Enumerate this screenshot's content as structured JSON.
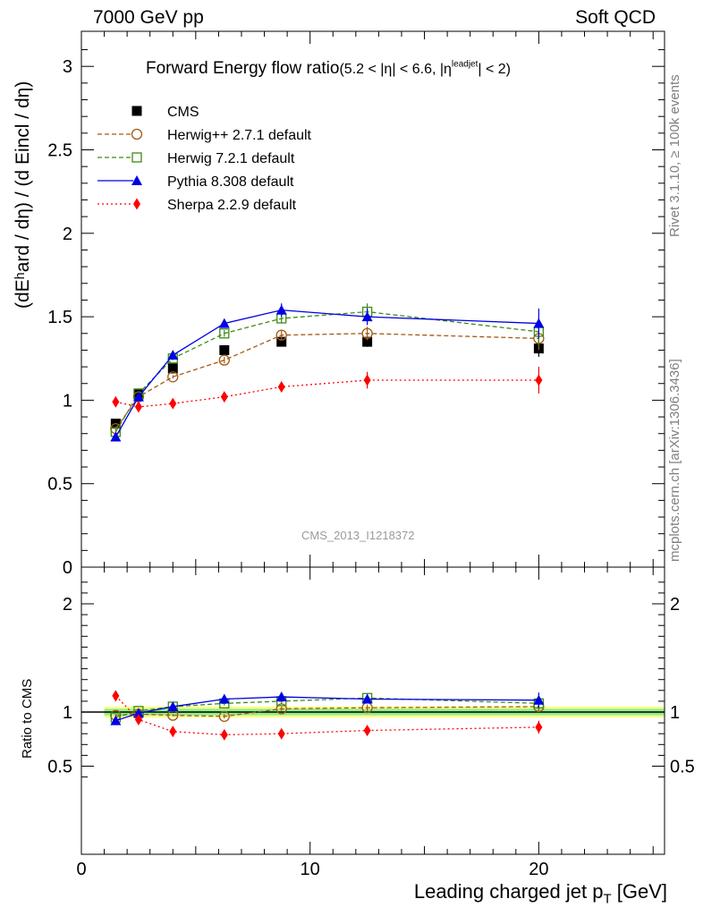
{
  "header": {
    "left": "7000 GeV pp",
    "right": "Soft QCD"
  },
  "side_labels": {
    "rivet": "Rivet 3.1.10, ≥ 100k events",
    "mcplots": "mcplots.cern.ch [arXiv:1306.3436]"
  },
  "watermark": "CMS_2013_I1218372",
  "colors": {
    "cms": "#000000",
    "herwigpp": "#a05a14",
    "herwig7": "#3c8c14",
    "pythia": "#0000e6",
    "sherpa": "#ff0000",
    "band_inner": "#90ee90",
    "band_outer": "#ffff80"
  },
  "chart_data": [
    {
      "type": "line",
      "title_main": "Forward Energy flow ratio",
      "title_sub": "(5.2 < |η| < 6.6, |η",
      "title_sup": "leadjet",
      "title_end": "| < 2)",
      "ylabel": "(dEʰard / dη) / (d Eincl / dη)",
      "xlim": [
        0,
        25.5
      ],
      "ylim": [
        0,
        3.2
      ],
      "y_ticks": [
        0,
        0.5,
        1,
        1.5,
        2,
        2.5,
        3
      ],
      "y_tick_labels": [
        "0",
        "0.5",
        "1",
        "1.5",
        "2",
        "2.5",
        "3"
      ],
      "legend_position": "top-left",
      "x": [
        1.5,
        2.5,
        4.0,
        6.25,
        8.75,
        12.5,
        20.0
      ],
      "series": [
        {
          "name": "CMS",
          "marker": "square-filled",
          "style": "none",
          "values": [
            0.86,
            1.04,
            1.19,
            1.3,
            1.35,
            1.35,
            1.31
          ],
          "errors": [
            0.02,
            0.02,
            0.02,
            0.02,
            0.02,
            0.03,
            0.05
          ]
        },
        {
          "name": "Herwig++ 2.7.1 default",
          "marker": "circle-open",
          "style": "dashed",
          "values": [
            0.83,
            1.02,
            1.14,
            1.24,
            1.39,
            1.4,
            1.37
          ],
          "errors": [
            0.01,
            0.01,
            0.01,
            0.02,
            0.03,
            0.04,
            0.07
          ]
        },
        {
          "name": "Herwig 7.2.1 default",
          "marker": "square-open",
          "style": "dashed",
          "values": [
            0.81,
            1.04,
            1.25,
            1.4,
            1.49,
            1.53,
            1.41
          ],
          "errors": [
            0.01,
            0.01,
            0.01,
            0.02,
            0.03,
            0.05,
            0.08
          ]
        },
        {
          "name": "Pythia 8.308 default",
          "marker": "triangle-filled",
          "style": "solid",
          "values": [
            0.78,
            1.02,
            1.27,
            1.46,
            1.54,
            1.5,
            1.46
          ],
          "errors": [
            0.01,
            0.01,
            0.01,
            0.02,
            0.04,
            0.05,
            0.09
          ]
        },
        {
          "name": "Sherpa 2.2.9 default",
          "marker": "diamond-filled",
          "style": "dotted",
          "values": [
            0.99,
            0.96,
            0.98,
            1.02,
            1.08,
            1.12,
            1.12
          ],
          "errors": [
            0.01,
            0.01,
            0.01,
            0.02,
            0.03,
            0.05,
            0.08
          ]
        }
      ]
    },
    {
      "type": "line",
      "ylabel": "Ratio to CMS",
      "xlabel": "Leading charged jet p",
      "xlabel_sub": "T",
      "xlabel_unit": " [GeV]",
      "xlim": [
        0,
        25.5
      ],
      "ylim": [
        0.35,
        2.25
      ],
      "x_ticks": [
        0,
        10,
        20
      ],
      "x_tick_labels": [
        "0",
        "10",
        "20"
      ],
      "y_ticks": [
        0.5,
        1,
        2
      ],
      "y_tick_labels": [
        "0.5",
        "1",
        "2"
      ],
      "band": {
        "xrange": [
          1.0,
          25.5
        ],
        "inner": [
          0.97,
          1.03
        ],
        "outer": [
          0.95,
          1.05
        ]
      },
      "x": [
        1.5,
        2.5,
        4.0,
        6.25,
        8.75,
        12.5,
        20.0
      ],
      "series": [
        {
          "name": "Herwig++ 2.7.1 default",
          "values": [
            0.97,
            0.98,
            0.97,
            0.96,
            1.03,
            1.04,
            1.05
          ],
          "errors": [
            0.01,
            0.01,
            0.01,
            0.02,
            0.02,
            0.03,
            0.05
          ]
        },
        {
          "name": "Herwig 7.2.1 default",
          "values": [
            0.95,
            1.01,
            1.05,
            1.08,
            1.1,
            1.13,
            1.08
          ],
          "errors": [
            0.01,
            0.01,
            0.01,
            0.02,
            0.02,
            0.04,
            0.06
          ]
        },
        {
          "name": "Pythia 8.308 default",
          "values": [
            0.92,
            0.99,
            1.05,
            1.12,
            1.14,
            1.12,
            1.11
          ],
          "errors": [
            0.01,
            0.01,
            0.01,
            0.02,
            0.03,
            0.04,
            0.07
          ]
        },
        {
          "name": "Sherpa 2.2.9 default",
          "values": [
            1.15,
            0.93,
            0.82,
            0.79,
            0.8,
            0.83,
            0.86
          ],
          "errors": [
            0.01,
            0.01,
            0.01,
            0.02,
            0.02,
            0.03,
            0.06
          ]
        }
      ]
    }
  ]
}
